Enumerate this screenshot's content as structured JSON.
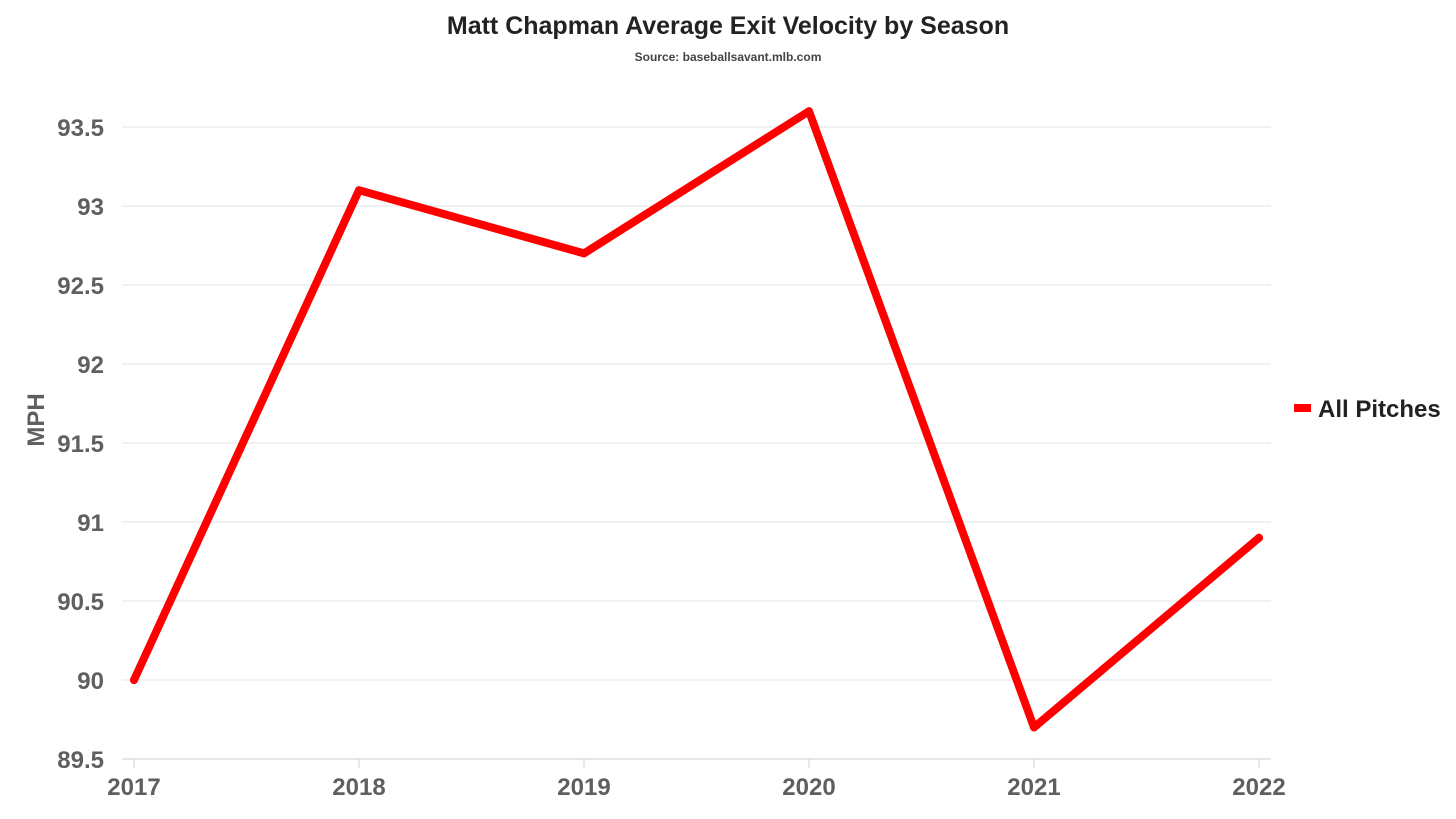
{
  "chart_data": {
    "type": "line",
    "title": "Matt Chapman Average Exit Velocity by Season",
    "subtitle": "Source: baseballsavant.mlb.com",
    "xlabel": "",
    "ylabel": "MPH",
    "categories": [
      "2017",
      "2018",
      "2019",
      "2020",
      "2021",
      "2022"
    ],
    "series": [
      {
        "name": "All Pitches",
        "color": "#ff0000",
        "values": [
          90.0,
          93.1,
          92.7,
          93.6,
          89.7,
          90.9
        ]
      }
    ],
    "ylim": [
      89.5,
      93.5
    ],
    "yticks": [
      89.5,
      90,
      90.5,
      91,
      91.5,
      92,
      92.5,
      93,
      93.5
    ],
    "ytick_labels": [
      "89.5",
      "90",
      "90.5",
      "91",
      "91.5",
      "92",
      "92.5",
      "93",
      "93.5"
    ],
    "grid": true,
    "legend_position": "right"
  }
}
